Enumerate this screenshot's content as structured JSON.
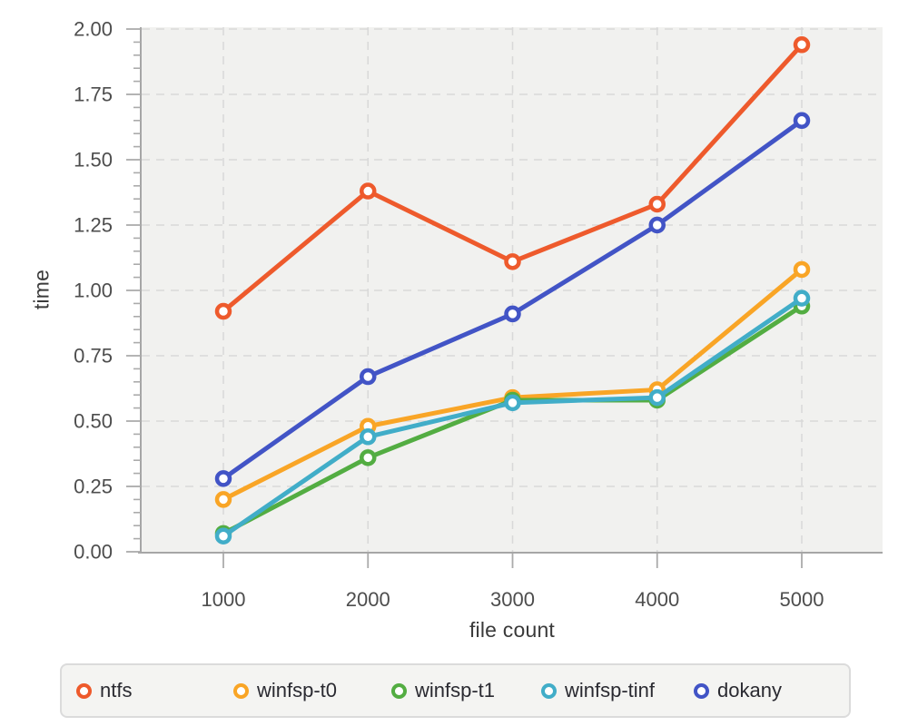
{
  "chart_data": {
    "type": "line",
    "title": "",
    "xlabel": "file count",
    "ylabel": "time",
    "x": [
      1000,
      2000,
      3000,
      4000,
      5000
    ],
    "x_tick_labels": [
      "1000",
      "2000",
      "3000",
      "4000",
      "5000"
    ],
    "series": [
      {
        "name": "ntfs",
        "color": "#ee5a2c",
        "values": [
          0.92,
          1.38,
          1.11,
          1.33,
          1.94
        ]
      },
      {
        "name": "winfsp-t0",
        "color": "#f9a526",
        "values": [
          0.2,
          0.48,
          0.59,
          0.62,
          1.08
        ]
      },
      {
        "name": "winfsp-t1",
        "color": "#53ad42",
        "values": [
          0.07,
          0.36,
          0.58,
          0.58,
          0.94
        ]
      },
      {
        "name": "winfsp-tinf",
        "color": "#41adc8",
        "values": [
          0.06,
          0.44,
          0.57,
          0.59,
          0.97
        ]
      },
      {
        "name": "dokany",
        "color": "#4254c6",
        "values": [
          0.28,
          0.67,
          0.91,
          1.25,
          1.65
        ]
      }
    ],
    "ylim": [
      0,
      2
    ],
    "y_ticks": [
      0,
      0.25,
      0.5,
      0.75,
      1,
      1.25,
      1.5,
      1.75,
      2
    ],
    "y_tick_labels": [
      "0.00",
      "0.25",
      "0.50",
      "0.75",
      "1.00",
      "1.25",
      "1.50",
      "1.75",
      "2.00"
    ],
    "y_minor_step": 0.05,
    "grid": "dashed",
    "legend_position": "bottom",
    "marker": "open-circle"
  },
  "style": {
    "plot_bg": "#f1f1ef",
    "grid_color": "#d9d9d9",
    "axis_line_color": "#a6a6a6",
    "tick_color": "#ababab",
    "tick_label_color": "#4d4d4d",
    "axis_title_color": "#3a3a3a",
    "legend_bg": "#f4f4f2",
    "legend_border": "#dbdbdb",
    "legend_text": "#2a2a31",
    "marker_fill": "#ffffff"
  }
}
